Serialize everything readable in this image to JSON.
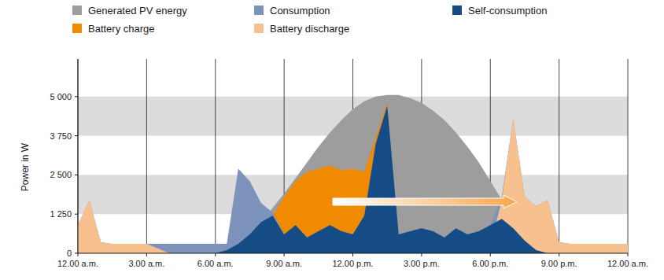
{
  "chart_data": {
    "type": "area",
    "y_label": "Power in W",
    "x": [
      0,
      0.5,
      1,
      1.5,
      2,
      2.5,
      3,
      3.5,
      4,
      4.5,
      5,
      5.5,
      6,
      6.5,
      7,
      7.5,
      8,
      8.5,
      9,
      9.5,
      10,
      10.5,
      11,
      11.5,
      12,
      12.5,
      13,
      13.5,
      14,
      14.5,
      15,
      15.5,
      16,
      16.5,
      17,
      17.5,
      18,
      18.5,
      19,
      19.5,
      20,
      20.5,
      21,
      21.5,
      22,
      22.5,
      23,
      23.5,
      24
    ],
    "series": [
      {
        "name": "Generated PV energy",
        "color": "#9d9d9e",
        "values": [
          0,
          0,
          0,
          0,
          0,
          0,
          0,
          0,
          0,
          0,
          0,
          0,
          0,
          100,
          300,
          600,
          1000,
          1450,
          1900,
          2400,
          2900,
          3400,
          3850,
          4250,
          4600,
          4850,
          5000,
          5050,
          5050,
          4950,
          4800,
          4550,
          4250,
          3850,
          3400,
          2900,
          2300,
          1700,
          1000,
          500,
          150,
          0,
          0,
          0,
          0,
          0,
          0,
          0,
          0
        ]
      },
      {
        "name": "Battery charge",
        "color": "#f08a00",
        "values": [
          0,
          0,
          0,
          0,
          0,
          0,
          0,
          0,
          0,
          0,
          0,
          0,
          0,
          0,
          0,
          0,
          0,
          1200,
          1800,
          2300,
          2600,
          2700,
          2800,
          2650,
          2700,
          2600,
          3700,
          4800,
          0,
          0,
          0,
          0,
          0,
          0,
          0,
          0,
          0,
          0,
          0,
          0,
          0,
          0,
          0,
          0,
          0,
          0,
          0,
          0,
          0
        ]
      },
      {
        "name": "Consumption",
        "color": "#7d93bb",
        "values": [
          900,
          1700,
          350,
          300,
          300,
          300,
          300,
          300,
          300,
          300,
          300,
          300,
          300,
          300,
          2700,
          2300,
          1600,
          1300,
          600,
          900,
          500,
          700,
          900,
          700,
          600,
          1200,
          3500,
          4700,
          600,
          700,
          800,
          700,
          500,
          800,
          600,
          700,
          900,
          1800,
          4300,
          1800,
          1500,
          1700,
          350,
          300,
          300,
          300,
          300,
          300,
          300
        ]
      },
      {
        "name": "Battery discharge",
        "color": "#f6c08f",
        "values": [
          900,
          1700,
          350,
          300,
          300,
          300,
          300,
          150,
          0,
          0,
          0,
          0,
          0,
          0,
          0,
          0,
          0,
          0,
          0,
          0,
          0,
          0,
          0,
          0,
          0,
          0,
          0,
          0,
          0,
          0,
          0,
          0,
          0,
          0,
          0,
          0,
          200,
          1700,
          4300,
          1800,
          1500,
          1700,
          350,
          300,
          300,
          300,
          300,
          300,
          300
        ]
      },
      {
        "name": "Self-consumption",
        "color": "#154c85",
        "values": [
          0,
          0,
          0,
          0,
          0,
          0,
          0,
          0,
          0,
          0,
          0,
          0,
          0,
          100,
          300,
          600,
          1000,
          1200,
          600,
          900,
          500,
          700,
          900,
          700,
          600,
          1200,
          3500,
          4700,
          600,
          700,
          800,
          700,
          500,
          800,
          600,
          700,
          900,
          1100,
          800,
          400,
          100,
          0,
          0,
          0,
          0,
          0,
          0,
          0,
          0
        ]
      }
    ],
    "xlim": [
      0,
      24
    ],
    "xticks": [
      {
        "value": 0,
        "label": "12.00 a.m."
      },
      {
        "value": 3,
        "label": "3.00 a.m."
      },
      {
        "value": 6,
        "label": "6.00 a.m."
      },
      {
        "value": 9,
        "label": "9.00 a.m."
      },
      {
        "value": 12,
        "label": "12.00 p.m."
      },
      {
        "value": 15,
        "label": "3.00 p.m."
      },
      {
        "value": 18,
        "label": "6.00 p.m."
      },
      {
        "value": 21,
        "label": "9.00 p.m."
      },
      {
        "value": 24,
        "label": "12.00 a.m."
      }
    ],
    "ylim": [
      0,
      6200
    ],
    "yticks": [
      0,
      {
        "value": 1250,
        "label": "1 250"
      },
      {
        "value": 2500,
        "label": "2 500"
      },
      {
        "value": 3750,
        "label": "3 750"
      },
      {
        "value": 5000,
        "label": "5 000"
      }
    ],
    "grid": true,
    "legend": "top",
    "stacked": false
  }
}
